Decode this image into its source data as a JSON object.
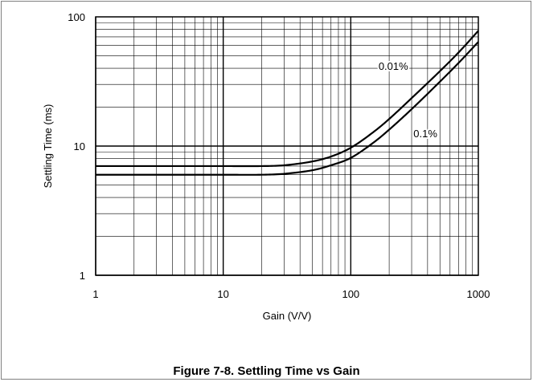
{
  "caption": "Figure 7-8. Settling Time vs Gain",
  "chart_data": {
    "type": "line",
    "title": "",
    "xlabel": "Gain (V/V)",
    "ylabel": "Settling Time (ms)",
    "xscale": "log",
    "yscale": "log",
    "xlim": [
      1,
      1000
    ],
    "ylim": [
      1,
      100
    ],
    "grid": true,
    "x_ticks": [
      "1",
      "10",
      "100",
      "1000"
    ],
    "y_ticks": [
      "1",
      "10",
      "100"
    ],
    "series": [
      {
        "name": "0.01%",
        "x": [
          1,
          10,
          20,
          30,
          50,
          70,
          100,
          150,
          200,
          300,
          500,
          700,
          1000
        ],
        "y": [
          7.0,
          7.0,
          7.0,
          7.1,
          7.6,
          8.3,
          9.7,
          12.8,
          16.2,
          23.5,
          38,
          53,
          78
        ]
      },
      {
        "name": "0.1%",
        "x": [
          1,
          10,
          20,
          30,
          50,
          70,
          100,
          150,
          200,
          300,
          500,
          700,
          1000
        ],
        "y": [
          6.0,
          6.0,
          6.0,
          6.1,
          6.5,
          7.1,
          8.1,
          10.6,
          13.4,
          19.3,
          31.5,
          44,
          64
        ]
      }
    ],
    "colors": {
      "line": "#000000",
      "grid": "#000000",
      "frame": "#808080"
    }
  }
}
